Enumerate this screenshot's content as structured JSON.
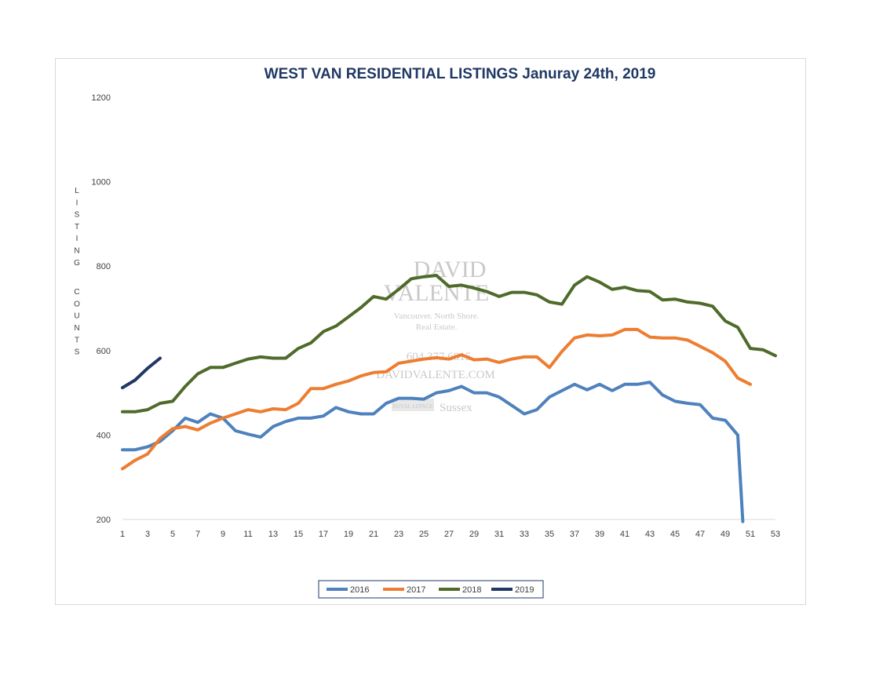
{
  "chart_data": {
    "type": "line",
    "title": "WEST VAN RESIDENTIAL LISTINGS Januray 24th, 2019",
    "xlabel": "",
    "ylabel": "LISTING COUNTS",
    "ylim": [
      200,
      1200
    ],
    "yticks": [
      200,
      400,
      600,
      800,
      1000,
      1200
    ],
    "xlim": [
      1,
      53
    ],
    "xticks": [
      1,
      3,
      5,
      7,
      9,
      11,
      13,
      15,
      17,
      19,
      21,
      23,
      25,
      27,
      29,
      31,
      33,
      35,
      37,
      39,
      41,
      43,
      45,
      47,
      49,
      51,
      53
    ],
    "grid": false,
    "legend_position": "bottom",
    "series": [
      {
        "name": "2016",
        "color": "#4e81bd",
        "x": [
          1,
          2,
          3,
          4,
          5,
          6,
          7,
          8,
          9,
          10,
          11,
          12,
          13,
          14,
          15,
          16,
          17,
          18,
          19,
          20,
          21,
          22,
          23,
          24,
          25,
          26,
          27,
          28,
          29,
          30,
          31,
          32,
          33,
          34,
          35,
          36,
          37,
          38,
          39,
          40,
          41,
          42,
          43,
          44,
          45,
          46,
          47,
          48,
          49,
          50,
          50.4
        ],
        "values": [
          365,
          365,
          372,
          385,
          410,
          440,
          430,
          450,
          440,
          410,
          402,
          395,
          420,
          432,
          440,
          440,
          445,
          465,
          455,
          450,
          450,
          475,
          487,
          487,
          485,
          500,
          505,
          515,
          500,
          500,
          490,
          470,
          450,
          460,
          490,
          505,
          520,
          507,
          520,
          505,
          520,
          520,
          525,
          495,
          480,
          475,
          472,
          440,
          435,
          400,
          195
        ]
      },
      {
        "name": "2017",
        "color": "#ed7d31",
        "x": [
          1,
          2,
          3,
          4,
          5,
          6,
          7,
          8,
          9,
          10,
          11,
          12,
          13,
          14,
          15,
          16,
          17,
          18,
          19,
          20,
          21,
          22,
          23,
          24,
          25,
          26,
          27,
          28,
          29,
          30,
          31,
          32,
          33,
          34,
          35,
          36,
          37,
          38,
          39,
          40,
          41,
          42,
          43,
          44,
          45,
          46,
          47,
          48,
          49,
          50,
          51
        ],
        "values": [
          320,
          340,
          355,
          392,
          415,
          420,
          412,
          428,
          440,
          450,
          460,
          455,
          462,
          460,
          475,
          510,
          510,
          520,
          528,
          540,
          548,
          550,
          570,
          575,
          580,
          583,
          580,
          590,
          578,
          580,
          572,
          580,
          585,
          585,
          560,
          598,
          630,
          637,
          635,
          637,
          650,
          650,
          632,
          630,
          630,
          625,
          610,
          595,
          575,
          535,
          520
        ]
      },
      {
        "name": "2018",
        "color": "#4e6b2a",
        "x": [
          1,
          2,
          3,
          4,
          5,
          6,
          7,
          8,
          9,
          10,
          11,
          12,
          13,
          14,
          15,
          16,
          17,
          18,
          19,
          20,
          21,
          22,
          23,
          24,
          25,
          26,
          27,
          28,
          29,
          30,
          31,
          32,
          33,
          34,
          35,
          36,
          37,
          38,
          39,
          40,
          41,
          42,
          43,
          44,
          45,
          46,
          47,
          48,
          49,
          50,
          51,
          52,
          53
        ],
        "values": [
          455,
          455,
          460,
          475,
          480,
          515,
          545,
          560,
          560,
          570,
          580,
          585,
          582,
          582,
          605,
          618,
          645,
          658,
          680,
          702,
          728,
          722,
          745,
          770,
          775,
          778,
          752,
          755,
          748,
          740,
          728,
          738,
          738,
          732,
          715,
          710,
          755,
          775,
          762,
          745,
          750,
          742,
          740,
          720,
          722,
          715,
          712,
          705,
          670,
          655,
          605,
          602,
          588
        ]
      },
      {
        "name": "2019",
        "color": "#1f3864",
        "x": [
          1,
          2,
          3,
          4
        ],
        "values": [
          512,
          530,
          558,
          582
        ]
      }
    ]
  },
  "watermark": {
    "line1": "DAVID",
    "line2": "VALENTE",
    "tagline1": "Vancouver. North Shore.",
    "tagline2": "Real Estate.",
    "phone": "604.377.6815",
    "website": "DAVIDVALENTE.COM",
    "brand": "ROYAL LEPAGE",
    "brand2": "Sussex"
  }
}
